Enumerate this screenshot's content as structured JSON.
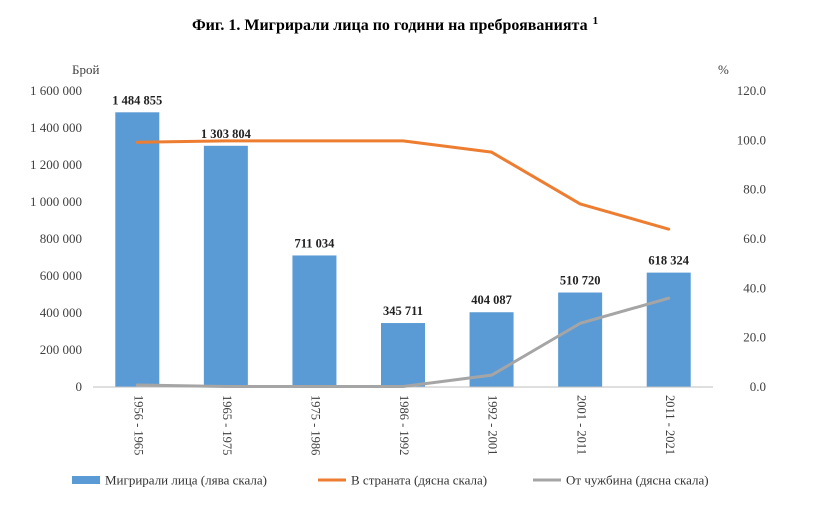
{
  "chart_data": {
    "type": "bar+line",
    "title": "Фиг. 1. Мигрирали лица по години на преброяванията",
    "title_footnote": "1",
    "y_left_label": "Брой",
    "y_right_label": "%",
    "y_left_lim": [
      0,
      1600000
    ],
    "y_right_lim": [
      0,
      120
    ],
    "y_left_ticks": [
      "0",
      "200 000",
      "400 000",
      "600 000",
      "800 000",
      "1 000 000",
      "1 200 000",
      "1 400 000",
      "1 600 000"
    ],
    "y_right_ticks": [
      "0.0",
      "20.0",
      "40.0",
      "60.0",
      "80.0",
      "100.0",
      "120.0"
    ],
    "categories": [
      "1956 - 1965",
      "1965 - 1975",
      "1975 - 1986",
      "1986 - 1992",
      "1992 - 2001",
      "2001 - 2011",
      "2011 - 2021"
    ],
    "series": [
      {
        "name": "Мигрирали лица (лява скала)",
        "kind": "bar",
        "axis": "left",
        "color": "#5B9BD5",
        "values": [
          1484855,
          1303804,
          711034,
          345711,
          404087,
          510720,
          618324
        ],
        "labels": [
          "1 484 855",
          "1 303 804",
          "711 034",
          "345 711",
          "404 087",
          "510 720",
          "618 324"
        ]
      },
      {
        "name": "В страната (дясна скала)",
        "kind": "line",
        "axis": "right",
        "color": "#ED7D31",
        "values": [
          99.2,
          99.8,
          99.8,
          99.8,
          95.2,
          74.2,
          64.0
        ]
      },
      {
        "name": "От чужбина (дясна скала)",
        "kind": "line",
        "axis": "right",
        "color": "#A5A5A5",
        "values": [
          0.8,
          0.2,
          0.2,
          0.2,
          4.8,
          25.8,
          36.0
        ]
      }
    ],
    "grid": false,
    "legend_position": "bottom"
  }
}
